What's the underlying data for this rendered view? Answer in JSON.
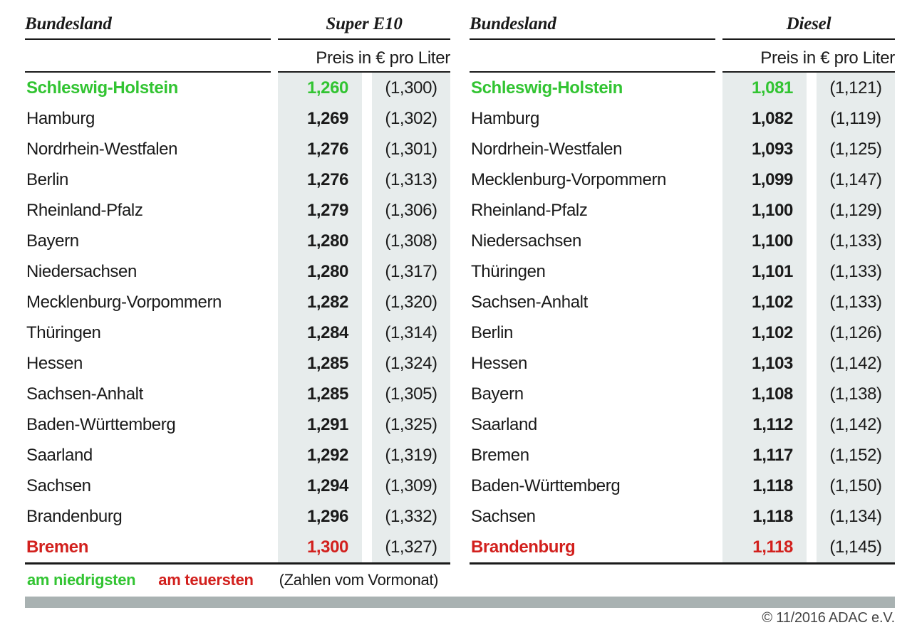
{
  "colors": {
    "text": "#1a1a1a",
    "lowest_green": "#32c432",
    "highest_red": "#d2201d",
    "cell_shade": "#e7ecec",
    "footer_bar_gray": "#a9b2b2"
  },
  "tables": [
    {
      "state_col_label": "Bundesland",
      "fuel_label": "Super E10",
      "unit_label": "Preis in € pro Liter",
      "rows": [
        {
          "state": "Schleswig-Holstein",
          "price": "1,260",
          "prev": "(1,300)",
          "highlight": "lowest"
        },
        {
          "state": "Hamburg",
          "price": "1,269",
          "prev": "(1,302)",
          "highlight": null
        },
        {
          "state": "Nordrhein-Westfalen",
          "price": "1,276",
          "prev": "(1,301)",
          "highlight": null
        },
        {
          "state": "Berlin",
          "price": "1,276",
          "prev": "(1,313)",
          "highlight": null
        },
        {
          "state": "Rheinland-Pfalz",
          "price": "1,279",
          "prev": "(1,306)",
          "highlight": null
        },
        {
          "state": "Bayern",
          "price": "1,280",
          "prev": "(1,308)",
          "highlight": null
        },
        {
          "state": "Niedersachsen",
          "price": "1,280",
          "prev": "(1,317)",
          "highlight": null
        },
        {
          "state": "Mecklenburg-Vorpommern",
          "price": "1,282",
          "prev": "(1,320)",
          "highlight": null
        },
        {
          "state": "Thüringen",
          "price": "1,284",
          "prev": "(1,314)",
          "highlight": null
        },
        {
          "state": "Hessen",
          "price": "1,285",
          "prev": "(1,324)",
          "highlight": null
        },
        {
          "state": "Sachsen-Anhalt",
          "price": "1,285",
          "prev": "(1,305)",
          "highlight": null
        },
        {
          "state": "Baden-Württemberg",
          "price": "1,291",
          "prev": "(1,325)",
          "highlight": null
        },
        {
          "state": "Saarland",
          "price": "1,292",
          "prev": "(1,319)",
          "highlight": null
        },
        {
          "state": "Sachsen",
          "price": "1,294",
          "prev": "(1,309)",
          "highlight": null
        },
        {
          "state": "Brandenburg",
          "price": "1,296",
          "prev": "(1,332)",
          "highlight": null
        },
        {
          "state": "Bremen",
          "price": "1,300",
          "prev": "(1,327)",
          "highlight": "highest"
        }
      ]
    },
    {
      "state_col_label": "Bundesland",
      "fuel_label": "Diesel",
      "unit_label": "Preis in € pro Liter",
      "rows": [
        {
          "state": "Schleswig-Holstein",
          "price": "1,081",
          "prev": "(1,121)",
          "highlight": "lowest"
        },
        {
          "state": "Hamburg",
          "price": "1,082",
          "prev": "(1,119)",
          "highlight": null
        },
        {
          "state": "Nordrhein-Westfalen",
          "price": "1,093",
          "prev": "(1,125)",
          "highlight": null
        },
        {
          "state": "Mecklenburg-Vorpommern",
          "price": "1,099",
          "prev": "(1,147)",
          "highlight": null
        },
        {
          "state": "Rheinland-Pfalz",
          "price": "1,100",
          "prev": "(1,129)",
          "highlight": null
        },
        {
          "state": "Niedersachsen",
          "price": "1,100",
          "prev": "(1,133)",
          "highlight": null
        },
        {
          "state": "Thüringen",
          "price": "1,101",
          "prev": "(1,133)",
          "highlight": null
        },
        {
          "state": "Sachsen-Anhalt",
          "price": "1,102",
          "prev": "(1,133)",
          "highlight": null
        },
        {
          "state": "Berlin",
          "price": "1,102",
          "prev": "(1,126)",
          "highlight": null
        },
        {
          "state": "Hessen",
          "price": "1,103",
          "prev": "(1,142)",
          "highlight": null
        },
        {
          "state": "Bayern",
          "price": "1,108",
          "prev": "(1,138)",
          "highlight": null
        },
        {
          "state": "Saarland",
          "price": "1,112",
          "prev": "(1,142)",
          "highlight": null
        },
        {
          "state": "Bremen",
          "price": "1,117",
          "prev": "(1,152)",
          "highlight": null
        },
        {
          "state": "Baden-Württemberg",
          "price": "1,118",
          "prev": "(1,150)",
          "highlight": null
        },
        {
          "state": "Sachsen",
          "price": "1,118",
          "prev": "(1,134)",
          "highlight": null
        },
        {
          "state": "Brandenburg",
          "price": "1,118",
          "prev": "(1,145)",
          "highlight": "highest"
        }
      ]
    }
  ],
  "legend": {
    "lowest_label": "am niedrigsten",
    "highest_label": "am teuersten",
    "note": "(Zahlen vom Vormonat)"
  },
  "footer": {
    "copyright": "© 11/2016 ADAC e.V."
  },
  "chart_data": [
    {
      "type": "table",
      "title": "Super E10 — Preis in € pro Liter",
      "columns": [
        "Bundesland",
        "Preis",
        "Vormonat"
      ],
      "rows": [
        [
          "Schleswig-Holstein",
          1.26,
          1.3
        ],
        [
          "Hamburg",
          1.269,
          1.302
        ],
        [
          "Nordrhein-Westfalen",
          1.276,
          1.301
        ],
        [
          "Berlin",
          1.276,
          1.313
        ],
        [
          "Rheinland-Pfalz",
          1.279,
          1.306
        ],
        [
          "Bayern",
          1.28,
          1.308
        ],
        [
          "Niedersachsen",
          1.28,
          1.317
        ],
        [
          "Mecklenburg-Vorpommern",
          1.282,
          1.32
        ],
        [
          "Thüringen",
          1.284,
          1.314
        ],
        [
          "Hessen",
          1.285,
          1.324
        ],
        [
          "Sachsen-Anhalt",
          1.285,
          1.305
        ],
        [
          "Baden-Württemberg",
          1.291,
          1.325
        ],
        [
          "Saarland",
          1.292,
          1.319
        ],
        [
          "Sachsen",
          1.294,
          1.309
        ],
        [
          "Brandenburg",
          1.296,
          1.332
        ],
        [
          "Bremen",
          1.3,
          1.327
        ]
      ],
      "annotations": {
        "lowest": "Schleswig-Holstein",
        "highest": "Bremen"
      }
    },
    {
      "type": "table",
      "title": "Diesel — Preis in € pro Liter",
      "columns": [
        "Bundesland",
        "Preis",
        "Vormonat"
      ],
      "rows": [
        [
          "Schleswig-Holstein",
          1.081,
          1.121
        ],
        [
          "Hamburg",
          1.082,
          1.119
        ],
        [
          "Nordrhein-Westfalen",
          1.093,
          1.125
        ],
        [
          "Mecklenburg-Vorpommern",
          1.099,
          1.147
        ],
        [
          "Rheinland-Pfalz",
          1.1,
          1.129
        ],
        [
          "Niedersachsen",
          1.1,
          1.133
        ],
        [
          "Thüringen",
          1.101,
          1.133
        ],
        [
          "Sachsen-Anhalt",
          1.102,
          1.133
        ],
        [
          "Berlin",
          1.102,
          1.126
        ],
        [
          "Hessen",
          1.103,
          1.142
        ],
        [
          "Bayern",
          1.108,
          1.138
        ],
        [
          "Saarland",
          1.112,
          1.142
        ],
        [
          "Bremen",
          1.117,
          1.152
        ],
        [
          "Baden-Württemberg",
          1.118,
          1.15
        ],
        [
          "Sachsen",
          1.118,
          1.134
        ],
        [
          "Brandenburg",
          1.118,
          1.145
        ]
      ],
      "annotations": {
        "lowest": "Schleswig-Holstein",
        "highest": "Brandenburg"
      }
    }
  ]
}
